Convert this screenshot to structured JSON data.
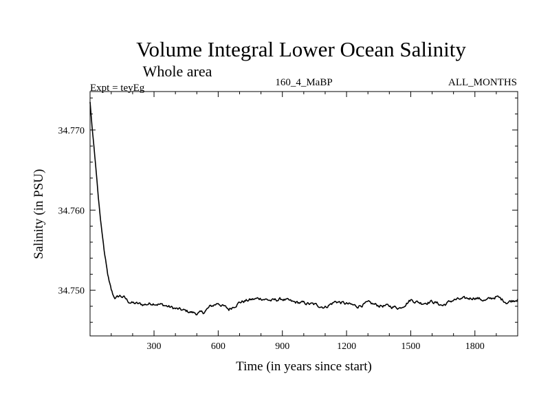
{
  "chart_data": {
    "type": "line",
    "title": "Volume Integral Lower Ocean Salinity",
    "subtitle": "Whole area",
    "header_left": "Expt = teyEg",
    "header_center": "160_4_MaBP",
    "header_right": "ALL_MONTHS",
    "xlabel": "Time (in years since start)",
    "ylabel": "Salinity (in PSU)",
    "xlim": [
      1,
      2000
    ],
    "ylim": [
      34.7443,
      34.7748
    ],
    "xticks": [
      {
        "value": 300,
        "label": "300"
      },
      {
        "value": 600,
        "label": "600"
      },
      {
        "value": 900,
        "label": "900"
      },
      {
        "value": 1200,
        "label": "1200"
      },
      {
        "value": 1500,
        "label": "1500"
      },
      {
        "value": 1800,
        "label": "1800"
      }
    ],
    "yticks": [
      {
        "value": 34.75,
        "label": "34.750"
      },
      {
        "value": 34.76,
        "label": "34.760"
      },
      {
        "value": 34.77,
        "label": "34.770"
      }
    ],
    "grid": false,
    "series": [
      {
        "name": "Salinity",
        "color": "#000000",
        "x": [
          1,
          10,
          20,
          30,
          40,
          50,
          60,
          70,
          80,
          90,
          100,
          110,
          120,
          140,
          160,
          180,
          200,
          250,
          300,
          350,
          400,
          450,
          500,
          530,
          560,
          600,
          650,
          700,
          750,
          800,
          850,
          900,
          950,
          1000,
          1050,
          1100,
          1150,
          1200,
          1250,
          1300,
          1350,
          1400,
          1450,
          1500,
          1550,
          1600,
          1650,
          1700,
          1750,
          1800,
          1850,
          1900,
          1950,
          2000
        ],
        "y": [
          34.7735,
          34.7705,
          34.7677,
          34.7647,
          34.7615,
          34.7588,
          34.7565,
          34.7543,
          34.7525,
          34.751,
          34.75,
          34.7493,
          34.749,
          34.7493,
          34.7491,
          34.7486,
          34.7484,
          34.7482,
          34.7484,
          34.7481,
          34.7477,
          34.7474,
          34.7471,
          34.7472,
          34.7479,
          34.7484,
          34.7476,
          34.7485,
          34.7488,
          34.749,
          34.7487,
          34.7489,
          34.7485,
          34.7484,
          34.7482,
          34.7479,
          34.7486,
          34.7483,
          34.748,
          34.7484,
          34.7481,
          34.748,
          34.7478,
          34.7488,
          34.7484,
          34.7486,
          34.7481,
          34.7488,
          34.7489,
          34.7491,
          34.7487,
          34.7492,
          34.7485,
          34.7489
        ]
      }
    ]
  }
}
